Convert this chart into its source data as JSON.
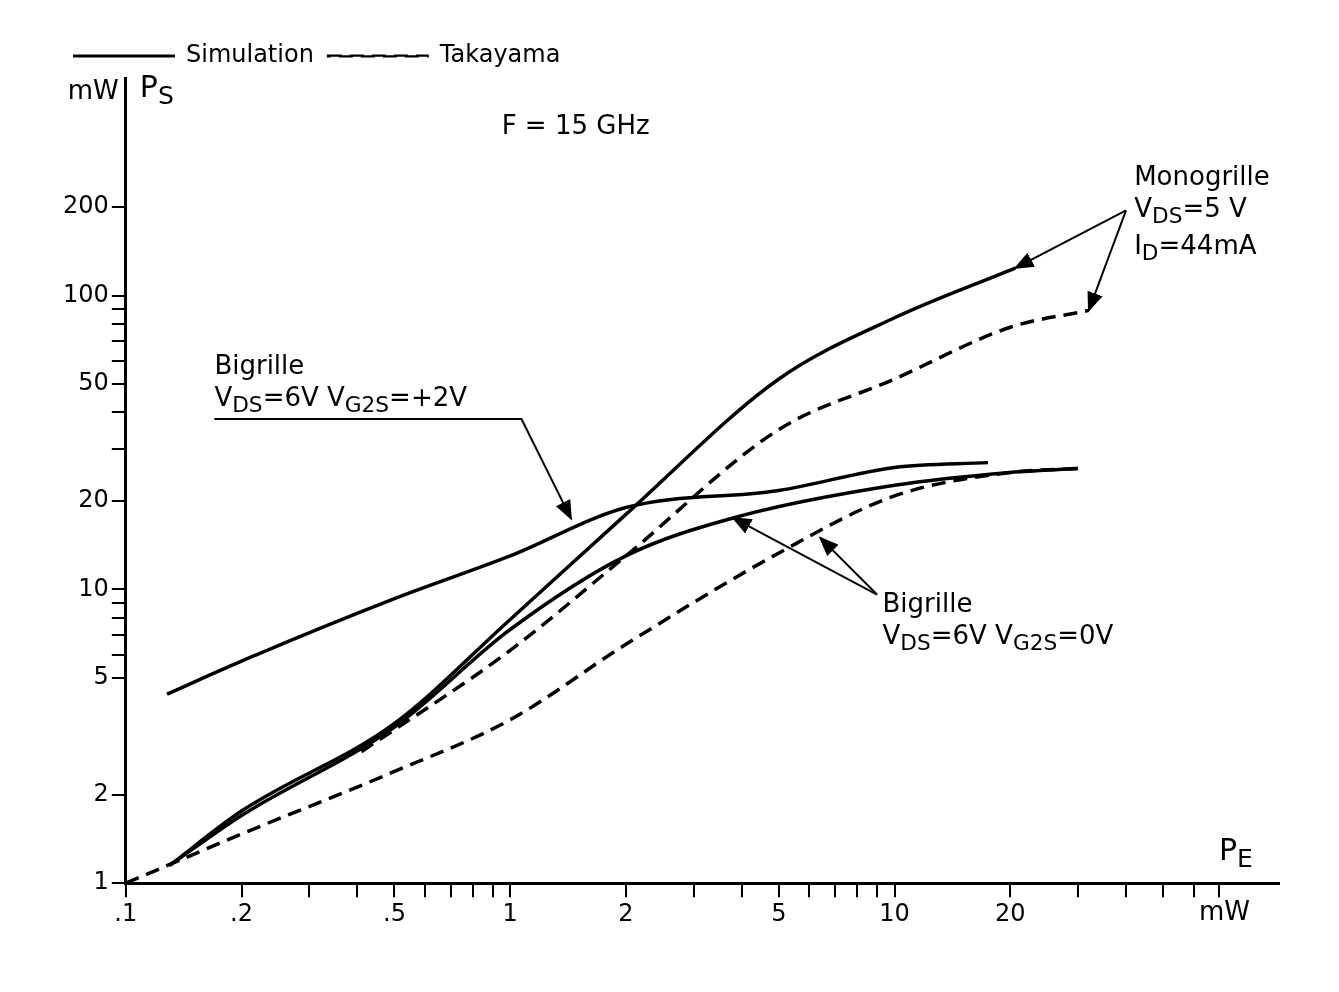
{
  "chart_data": {
    "type": "line",
    "xlabel": "P$_{E}$",
    "ylabel": "P$_{S}$",
    "annotations": [
      "F = 15 GHz",
      "Monogrille\nV$_{DS}$=5 V\nI$_{D}$=44mA",
      "Bigrille\nV$_{DS}$=6V V$_{G2S}$=+2V",
      {
        "text": "Bigrille\nV$_{DS}$=6V V$_{G2S}$=0V",
        "x": 3.8,
        "y": 17.5
      },
      "mW",
      "mW"
    ],
    "log": "xy",
    "legend": "top left",
    "marker": "none",
    "xlim": [
      0.1,
      100
    ],
    "ylim": [
      1,
      550
    ],
    "xticks": [
      {
        "value": 0.1,
        "label": ".1"
      },
      {
        "value": 0.2,
        "label": ".2"
      },
      {
        "value": 0.3,
        "label": null
      },
      {
        "value": 0.4,
        "label": null
      },
      {
        "value": 0.5,
        "label": ".5"
      },
      {
        "value": 0.6,
        "label": null
      },
      {
        "value": 0.7,
        "label": null
      },
      {
        "value": 0.8,
        "label": null
      },
      {
        "value": 0.9,
        "label": null
      },
      1,
      2,
      {
        "value": 3,
        "label": null
      },
      {
        "value": 4,
        "label": null
      },
      5,
      {
        "value": 6,
        "label": null
      },
      {
        "value": 7,
        "label": null
      },
      {
        "value": 8,
        "label": null
      },
      {
        "value": 9,
        "label": null
      },
      10,
      20,
      {
        "value": 30,
        "label": null
      },
      {
        "value": 40,
        "label": null
      },
      {
        "value": 50,
        "label": null
      },
      {
        "value": 60,
        "label": null
      },
      {
        "value": 70,
        "label": null
      }
    ],
    "yticks": [
      1,
      2,
      5,
      {
        "value": 6,
        "label": null
      },
      {
        "value": 7,
        "label": null
      },
      {
        "value": 8,
        "label": null
      },
      {
        "value": 9,
        "label": null
      },
      10,
      20,
      {
        "value": 30,
        "label": null
      },
      {
        "value": 40,
        "label": null
      },
      50,
      {
        "value": 60,
        "label": null
      },
      {
        "value": 70,
        "label": null
      },
      {
        "value": 80,
        "label": null
      },
      {
        "value": 90,
        "label": null
      },
      100,
      200
    ],
    "series": [
      {
        "name": "Simulation",
        "color": "#000000",
        "line_style": "solid",
        "x": [
          0.13,
          0.2,
          0.5,
          1,
          2,
          5,
          10,
          20.6
        ],
        "values": [
          1.15,
          1.76,
          3.5,
          7.9,
          18,
          52,
          84,
          124
        ]
      },
      {
        "name": "Takayama",
        "color": "#000000",
        "line_style": "dashed",
        "x": [
          0.41,
          1,
          2,
          5,
          10,
          20,
          32
        ],
        "values": [
          2.8,
          6.2,
          13,
          35,
          52,
          78,
          89
        ]
      },
      {
        "color": "#000000",
        "line_style": "solid",
        "x": [
          0.128,
          0.2,
          0.5,
          1,
          2,
          5,
          10,
          17.5
        ],
        "values": [
          4.4,
          5.7,
          9.3,
          13,
          19,
          21.7,
          26,
          27
        ]
      },
      {
        "color": "#000000",
        "line_style": "solid",
        "x": [
          0.13,
          0.2,
          0.5,
          1,
          2,
          3.8,
          10,
          20,
          30
        ],
        "values": [
          1.15,
          1.7,
          3.4,
          7.3,
          13,
          17.5,
          22.6,
          25,
          25.8
        ]
      },
      {
        "color": "#000000",
        "line_style": "dashed",
        "x": [
          0.1,
          0.2,
          0.5,
          1,
          2,
          5,
          10,
          20,
          30
        ],
        "values": [
          1,
          1.47,
          2.4,
          3.6,
          6.5,
          13.3,
          20.8,
          25,
          25.8
        ]
      }
    ]
  }
}
